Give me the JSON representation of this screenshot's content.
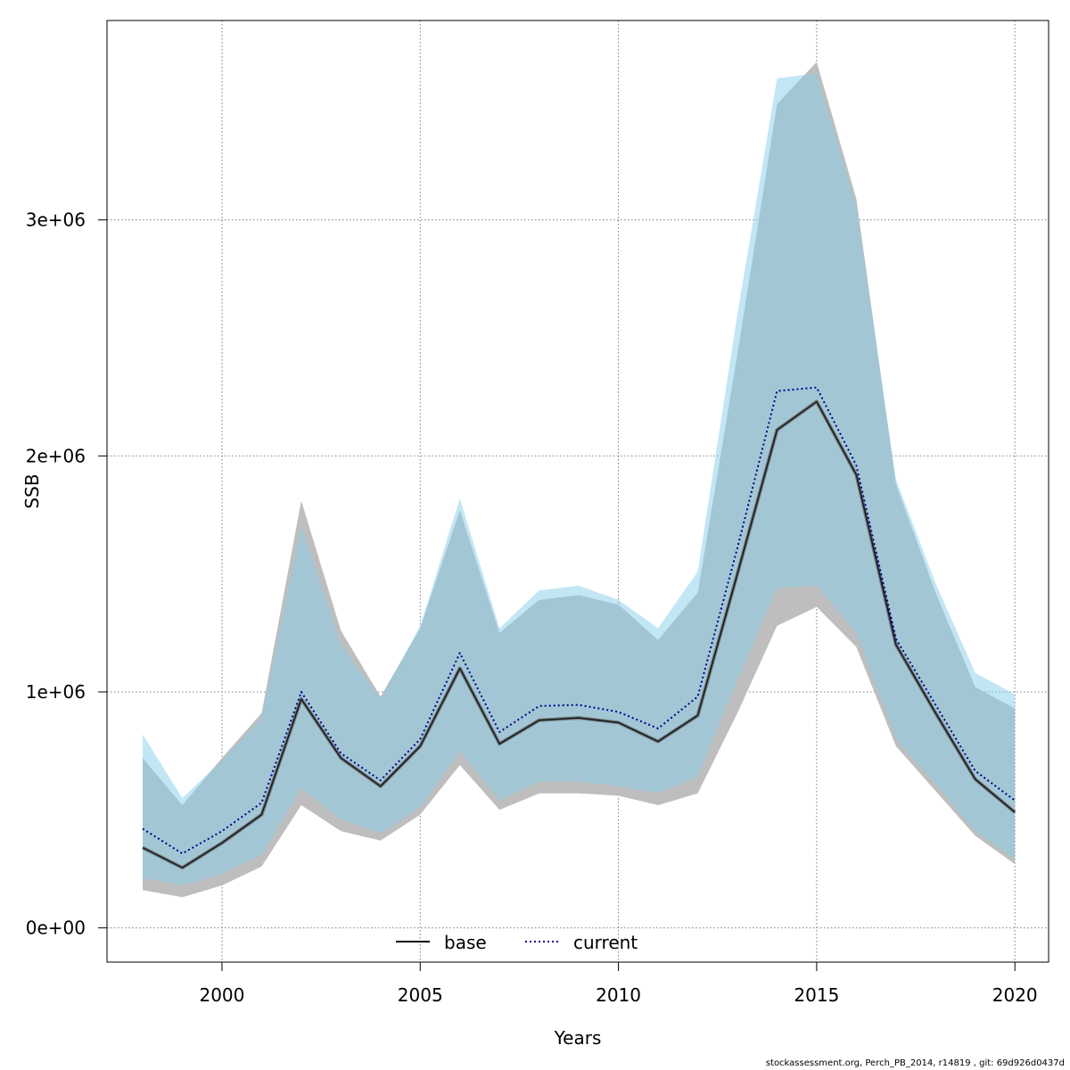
{
  "chart_data": {
    "type": "area",
    "xlabel": "Years",
    "ylabel": "SSB",
    "xlim": [
      1997.1,
      2020.85
    ],
    "ylim": [
      -145000,
      3845000
    ],
    "x_ticks": [
      2000,
      2005,
      2010,
      2015,
      2020
    ],
    "y_ticks": [
      0,
      1000000,
      2000000,
      3000000
    ],
    "y_tick_labels": [
      "0e+00",
      "1e+06",
      "2e+06",
      "3e+06"
    ],
    "grid": true,
    "legend_position": "bottom",
    "colors": {
      "base_band": "#bebebe",
      "current_band": "#87ceeb",
      "base_line": "#000000",
      "current_line": "#00008b"
    },
    "x": [
      1998,
      1999,
      2000,
      2001,
      2002,
      2003,
      2004,
      2005,
      2006,
      2007,
      2008,
      2009,
      2010,
      2011,
      2012,
      2013,
      2014,
      2015,
      2016,
      2017,
      2018,
      2019,
      2020
    ],
    "series": [
      {
        "name": "base",
        "values": [
          340000,
          255000,
          360000,
          480000,
          970000,
          720000,
          600000,
          770000,
          1100000,
          780000,
          880000,
          890000,
          870000,
          790000,
          900000,
          1500000,
          2110000,
          2230000,
          1920000,
          1200000,
          910000,
          630000,
          490000
        ],
        "lower": [
          160000,
          130000,
          180000,
          260000,
          520000,
          410000,
          370000,
          480000,
          690000,
          500000,
          570000,
          570000,
          560000,
          520000,
          570000,
          910000,
          1280000,
          1360000,
          1190000,
          770000,
          580000,
          390000,
          270000
        ],
        "upper": [
          720000,
          520000,
          720000,
          910000,
          1810000,
          1260000,
          980000,
          1270000,
          1770000,
          1250000,
          1390000,
          1410000,
          1370000,
          1220000,
          1420000,
          2430000,
          3490000,
          3670000,
          3090000,
          1880000,
          1420000,
          1020000,
          930000
        ]
      },
      {
        "name": "current",
        "values": [
          420000,
          315000,
          410000,
          530000,
          1000000,
          740000,
          625000,
          800000,
          1165000,
          830000,
          940000,
          945000,
          915000,
          845000,
          980000,
          1610000,
          2275000,
          2290000,
          1960000,
          1225000,
          945000,
          665000,
          540000
        ],
        "lower": [
          210000,
          180000,
          230000,
          310000,
          590000,
          460000,
          400000,
          510000,
          750000,
          540000,
          620000,
          620000,
          600000,
          570000,
          640000,
          1050000,
          1440000,
          1450000,
          1250000,
          800000,
          610000,
          410000,
          290000
        ],
        "upper": [
          820000,
          550000,
          710000,
          890000,
          1700000,
          1200000,
          970000,
          1280000,
          1820000,
          1270000,
          1430000,
          1450000,
          1390000,
          1270000,
          1510000,
          2600000,
          3600000,
          3620000,
          3060000,
          1900000,
          1460000,
          1080000,
          990000
        ]
      }
    ]
  },
  "legend": [
    {
      "label": "base",
      "style": "solid"
    },
    {
      "label": "current",
      "style": "dotted"
    }
  ],
  "footer": "stockassessment.org, Perch_PB_2014, r14819 , git: 69d926d0437d"
}
